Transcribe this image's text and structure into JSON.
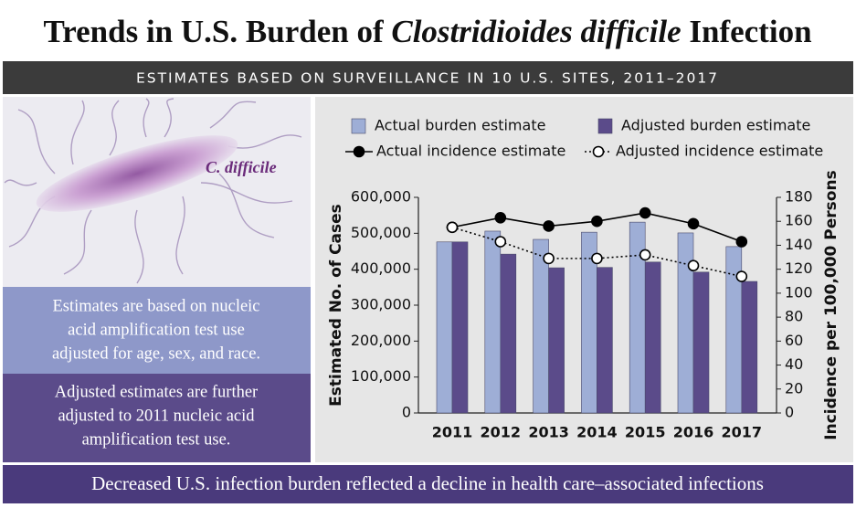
{
  "header": {
    "title_parts": [
      "Trends in U.S. Burden of ",
      "Clostridioides difficile",
      " Infection"
    ],
    "subtitle": "ESTIMATES BASED ON SURVEILLANCE IN 10 U.S. SITES, 2011–2017"
  },
  "illustration_label": "C. difficile",
  "notes": [
    {
      "lines": [
        "Estimates are based on nucleic",
        "acid amplification test use",
        "adjusted for age, sex, and race."
      ]
    },
    {
      "lines": [
        "Adjusted estimates are further",
        "adjusted to 2011 nucleic acid",
        "amplification test use."
      ]
    }
  ],
  "footer": "Decreased U.S. infection burden reflected a decline in health care–associated infections",
  "chart_data": {
    "type": "bar",
    "categories": [
      "2011",
      "2012",
      "2013",
      "2014",
      "2015",
      "2016",
      "2017"
    ],
    "y_label": "Estimated No. of Cases",
    "y2_label": "Incidence per 100,000 Persons",
    "ylim": [
      0,
      600000
    ],
    "yticks": [
      0,
      {
        "value": 100000,
        "label": "100,000"
      },
      {
        "value": 200000,
        "label": "200,000"
      },
      {
        "value": 300000,
        "label": "300,000"
      },
      {
        "value": 400000,
        "label": "400,000"
      },
      {
        "value": 500000,
        "label": "500,000"
      },
      {
        "value": 600000,
        "label": "600,000"
      }
    ],
    "y2lim": [
      0,
      180
    ],
    "y2ticks": [
      0,
      20,
      40,
      60,
      80,
      100,
      120,
      140,
      160,
      180
    ],
    "series": [
      {
        "name": "Actual burden estimate",
        "type": "bar",
        "color": "#9eaed6",
        "values": [
          476000,
          506000,
          483000,
          503000,
          531000,
          501000,
          463000
        ]
      },
      {
        "name": "Adjusted burden estimate",
        "type": "bar",
        "color": "#5b4b8a",
        "values": [
          476000,
          442000,
          404000,
          405000,
          420000,
          392000,
          366000
        ]
      },
      {
        "name": "Actual incidence estimate",
        "type": "line",
        "axis": "y2",
        "color": "#000000",
        "dash": "solid",
        "marker": "filled",
        "values": [
          155,
          163,
          156,
          160,
          167,
          158,
          143
        ]
      },
      {
        "name": "Adjusted incidence estimate",
        "type": "line",
        "axis": "y2",
        "color": "#000000",
        "dash": "dotted",
        "marker": "open",
        "values": [
          155,
          143,
          129,
          129,
          132,
          123,
          114
        ]
      }
    ]
  }
}
